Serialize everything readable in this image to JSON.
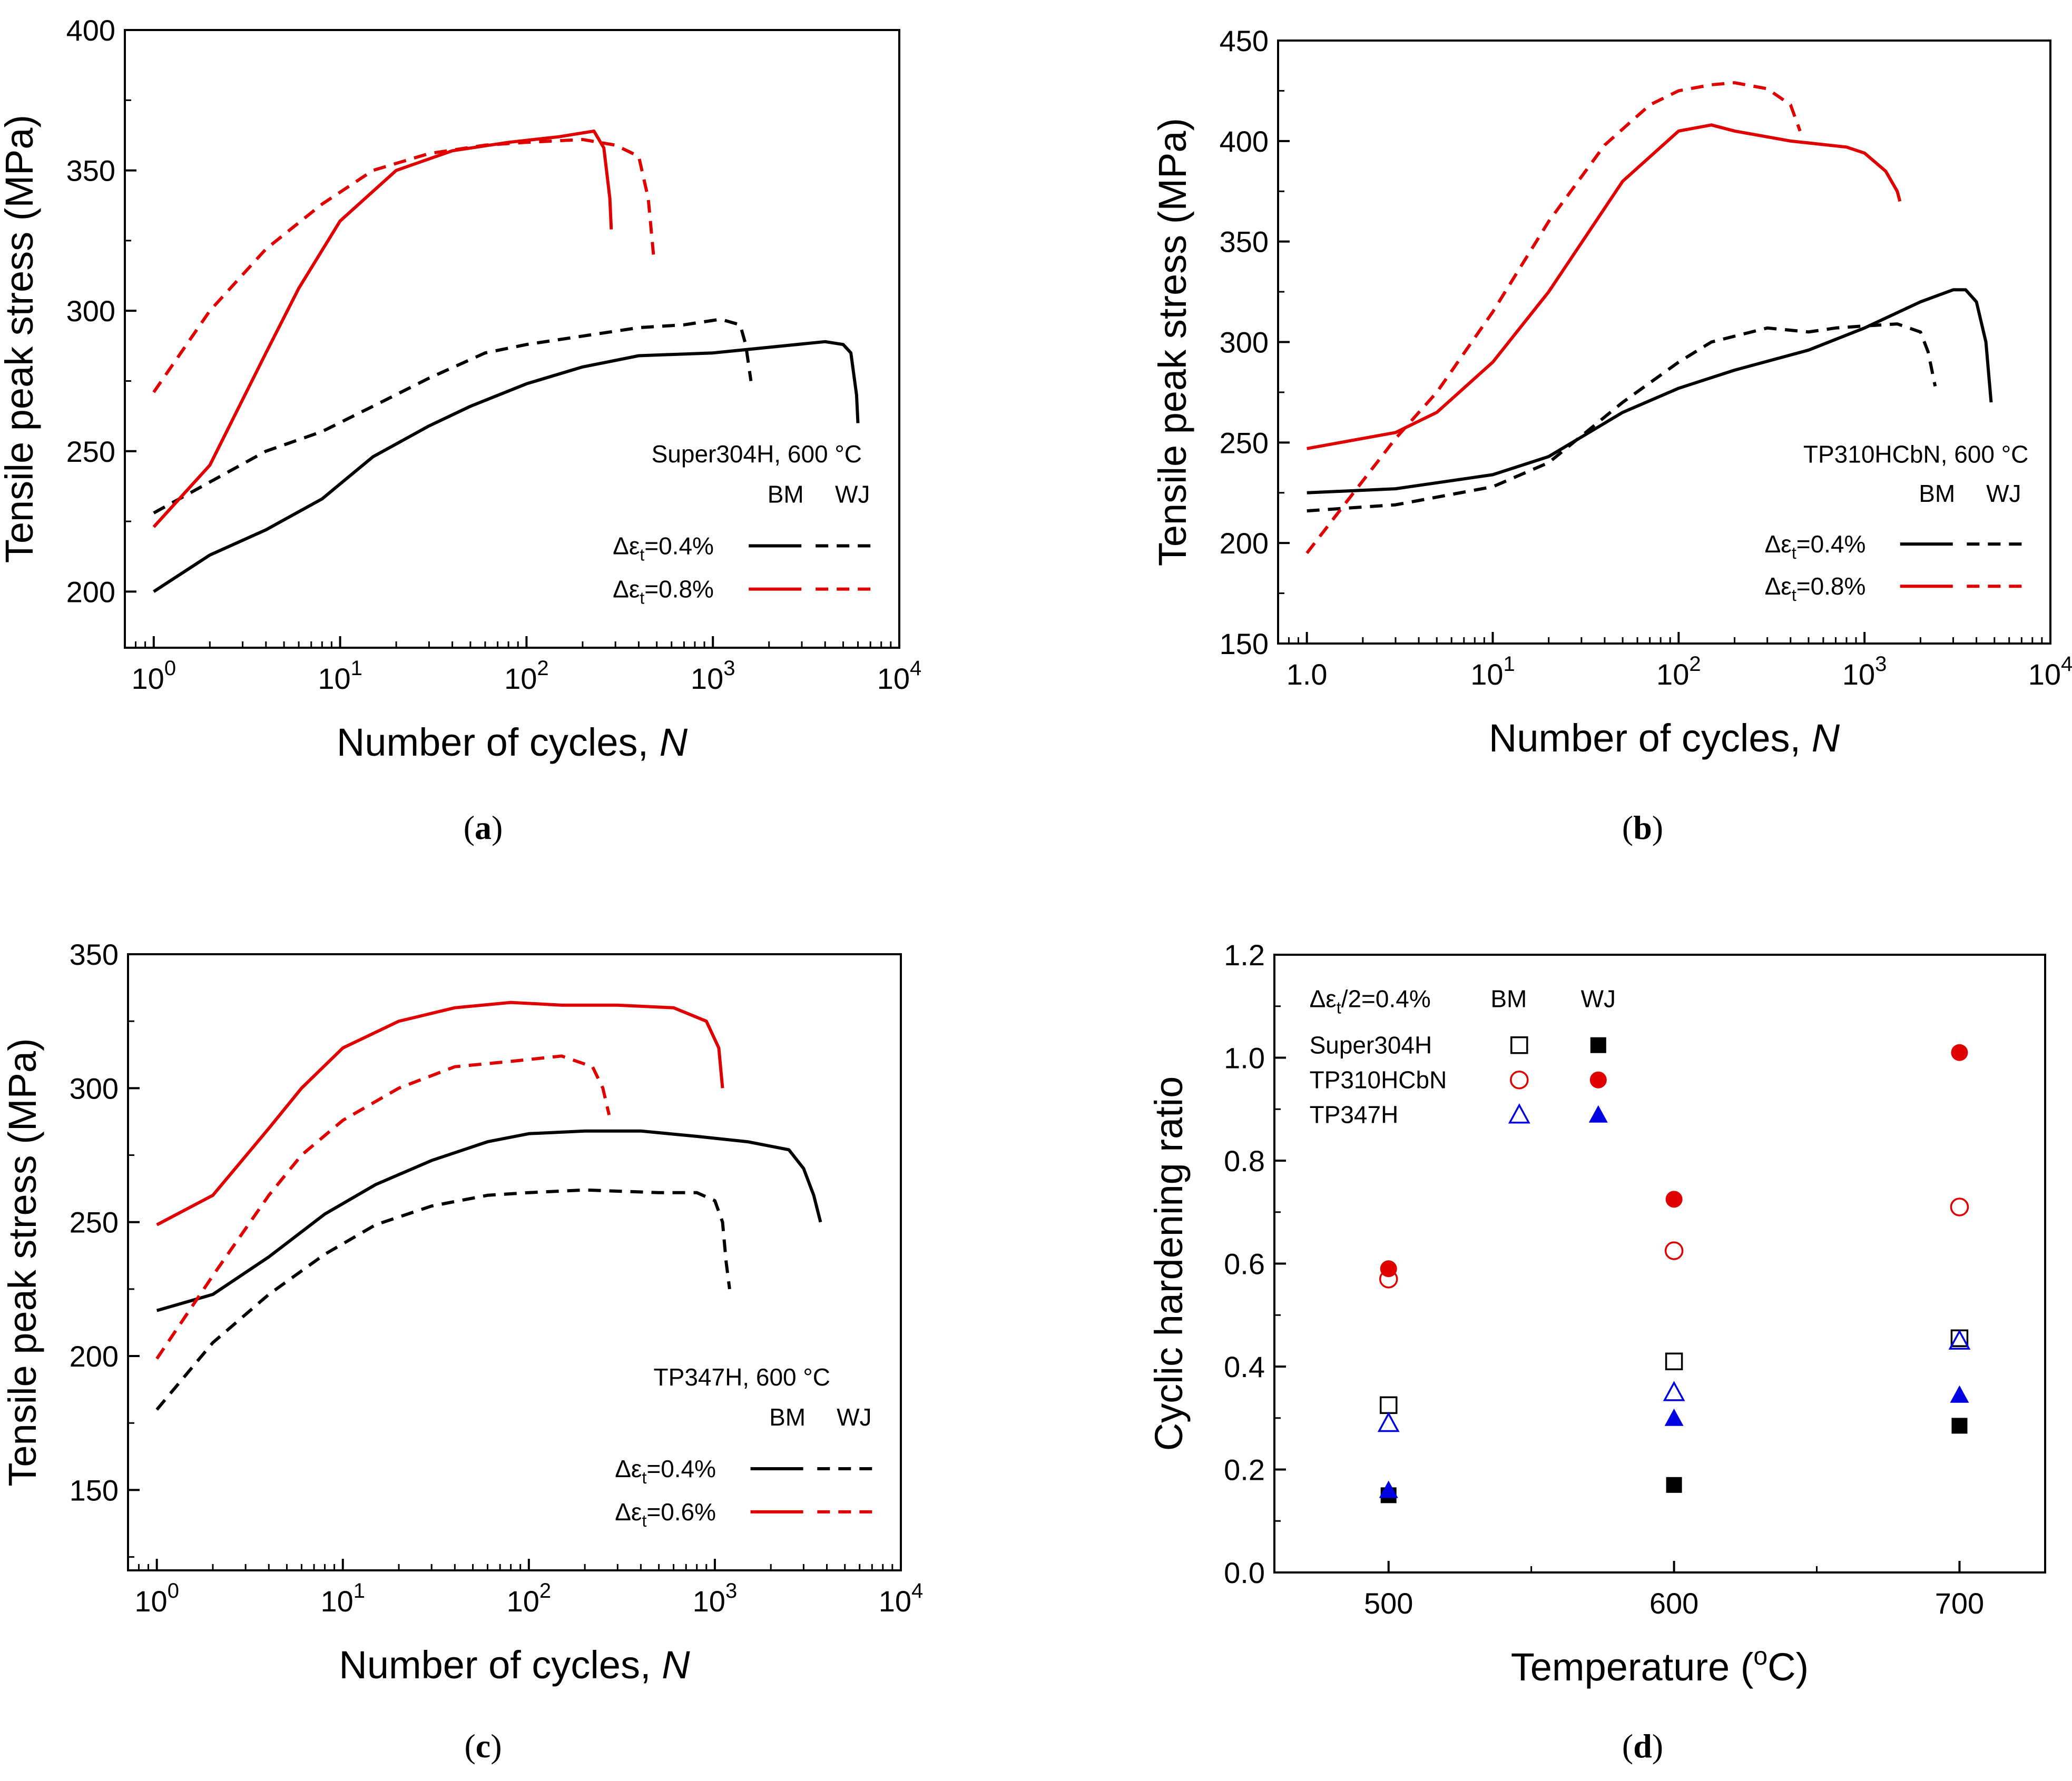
{
  "chart_data": [
    {
      "type": "line",
      "panel": "a",
      "caption": "(a)",
      "xscale": "log",
      "xlim": [
        0.7,
        10000
      ],
      "ylim": [
        180,
        400
      ],
      "yticks": [
        "200",
        "250",
        "300",
        "350",
        "400"
      ],
      "xticks": [
        {
          "base": "10",
          "exp": "0"
        },
        {
          "base": "10",
          "exp": "1"
        },
        {
          "base": "10",
          "exp": "2"
        },
        {
          "base": "10",
          "exp": "3"
        },
        {
          "base": "10",
          "exp": "4"
        }
      ],
      "xlabel": "Number of cycles, ",
      "xlabel_var": "N",
      "ylabel": "Tensile peak stress (MPa)",
      "legend": {
        "title": "Super304H, 600 °C",
        "col_bm": "BM",
        "col_wj": "WJ",
        "rows": [
          {
            "label": "Δε",
            "sub": "t",
            "value": "=0.4%",
            "color": "#000000"
          },
          {
            "label": "Δε",
            "sub": "t",
            "value": "=0.8%",
            "color": "#e00000"
          }
        ]
      },
      "series": [
        {
          "name": "Δεt=0.4% BM",
          "color": "#000000",
          "dash": false,
          "x": [
            1,
            2,
            4,
            8,
            15,
            30,
            50,
            100,
            200,
            400,
            1000,
            2000,
            4000,
            5000,
            5500,
            5900,
            6000
          ],
          "y": [
            200,
            213,
            222,
            233,
            248,
            259,
            266,
            274,
            280,
            284,
            285,
            287,
            289,
            288,
            285,
            270,
            260
          ]
        },
        {
          "name": "Δεt=0.4% WJ",
          "color": "#000000",
          "dash": true,
          "x": [
            1,
            2,
            4,
            8,
            15,
            30,
            60,
            100,
            200,
            400,
            700,
            1100,
            1400,
            1500,
            1600
          ],
          "y": [
            228,
            239,
            250,
            257,
            266,
            276,
            285,
            288,
            291,
            294,
            295,
            297,
            295,
            288,
            275
          ]
        },
        {
          "name": "Δεt=0.8% BM",
          "color": "#e00000",
          "dash": false,
          "x": [
            1,
            2,
            4,
            6,
            10,
            20,
            40,
            80,
            150,
            230,
            260,
            280,
            285
          ],
          "y": [
            223,
            245,
            285,
            308,
            332,
            350,
            357,
            360,
            362,
            364,
            358,
            340,
            329
          ]
        },
        {
          "name": "Δεt=0.8% WJ",
          "color": "#e00000",
          "dash": true,
          "x": [
            1,
            2,
            4,
            8,
            15,
            30,
            60,
            100,
            200,
            300,
            400,
            450,
            480
          ],
          "y": [
            271,
            300,
            322,
            338,
            350,
            356,
            359,
            360,
            361,
            359,
            355,
            340,
            320
          ]
        }
      ]
    },
    {
      "type": "line",
      "panel": "b",
      "caption": "(b)",
      "xscale": "log",
      "xlim": [
        0.7,
        10000
      ],
      "ylim": [
        150,
        450
      ],
      "yticks": [
        "150",
        "200",
        "250",
        "300",
        "350",
        "400",
        "450"
      ],
      "xticks": [
        {
          "base": "1.0",
          "exp": ""
        },
        {
          "base": "10",
          "exp": "1"
        },
        {
          "base": "10",
          "exp": "2"
        },
        {
          "base": "10",
          "exp": "3"
        },
        {
          "base": "10",
          "exp": "4"
        }
      ],
      "xlabel": "Number of cycles, ",
      "xlabel_var": "N",
      "ylabel": "Tensile peak stress (MPa)",
      "legend": {
        "title": "TP310HCbN, 600 °C",
        "col_bm": "BM",
        "col_wj": "WJ",
        "rows": [
          {
            "label": "Δε",
            "sub": "t",
            "value": "=0.4%",
            "color": "#000000"
          },
          {
            "label": "Δε",
            "sub": "t",
            "value": "=0.8%",
            "color": "#e00000"
          }
        ]
      },
      "series": [
        {
          "name": "Δεt=0.4% BM",
          "color": "#000000",
          "dash": false,
          "x": [
            1,
            3,
            10,
            20,
            50,
            100,
            200,
            500,
            1000,
            2000,
            3000,
            3500,
            4000,
            4500,
            4800
          ],
          "y": [
            225,
            227,
            234,
            243,
            265,
            277,
            286,
            296,
            307,
            320,
            326,
            326,
            320,
            300,
            270
          ]
        },
        {
          "name": "Δεt=0.4% WJ",
          "color": "#000000",
          "dash": true,
          "x": [
            1,
            3,
            10,
            20,
            50,
            100,
            150,
            300,
            500,
            700,
            1000,
            1500,
            2000,
            2200,
            2400
          ],
          "y": [
            216,
            219,
            228,
            240,
            270,
            290,
            300,
            307,
            305,
            307,
            308,
            309,
            305,
            295,
            278
          ]
        },
        {
          "name": "Δεt=0.8% BM",
          "color": "#e00000",
          "dash": false,
          "x": [
            1,
            3,
            5,
            10,
            20,
            50,
            100,
            150,
            200,
            400,
            800,
            1000,
            1300,
            1500,
            1550
          ],
          "y": [
            247,
            255,
            265,
            290,
            325,
            380,
            405,
            408,
            405,
            400,
            397,
            394,
            385,
            375,
            370
          ]
        },
        {
          "name": "Δεt=0.8% WJ",
          "color": "#e00000",
          "dash": true,
          "x": [
            1,
            3,
            5,
            10,
            20,
            40,
            70,
            100,
            150,
            200,
            300,
            400,
            450
          ],
          "y": [
            195,
            252,
            275,
            315,
            360,
            398,
            418,
            425,
            428,
            429,
            426,
            418,
            405
          ]
        }
      ]
    },
    {
      "type": "line",
      "panel": "c",
      "caption": "(c)",
      "xscale": "log",
      "xlim": [
        0.7,
        10000
      ],
      "ylim": [
        120,
        350
      ],
      "yticks": [
        "150",
        "200",
        "250",
        "300",
        "350"
      ],
      "xticks": [
        {
          "base": "10",
          "exp": "0"
        },
        {
          "base": "10",
          "exp": "1"
        },
        {
          "base": "10",
          "exp": "2"
        },
        {
          "base": "10",
          "exp": "3"
        },
        {
          "base": "10",
          "exp": "4"
        }
      ],
      "xlabel": "Number of cycles, ",
      "xlabel_var": "N",
      "ylabel": "Tensile peak stress (MPa)",
      "legend": {
        "title": "TP347H, 600 °C",
        "col_bm": "BM",
        "col_wj": "WJ",
        "rows": [
          {
            "label": "Δε",
            "sub": "t",
            "value": "=0.4%",
            "color": "#000000"
          },
          {
            "label": "Δε",
            "sub": "t",
            "value": "=0.6%",
            "color": "#e00000"
          }
        ]
      },
      "series": [
        {
          "name": "Δεt=0.4% BM",
          "color": "#000000",
          "dash": false,
          "x": [
            1,
            2,
            4,
            8,
            15,
            30,
            60,
            100,
            200,
            400,
            800,
            1500,
            2500,
            3000,
            3400,
            3700
          ],
          "y": [
            217,
            223,
            237,
            253,
            264,
            273,
            280,
            283,
            284,
            284,
            282,
            280,
            277,
            270,
            260,
            250
          ]
        },
        {
          "name": "Δεt=0.4% WJ",
          "color": "#000000",
          "dash": true,
          "x": [
            1,
            2,
            4,
            8,
            15,
            30,
            60,
            100,
            200,
            500,
            800,
            1000,
            1100,
            1150,
            1200
          ],
          "y": [
            180,
            205,
            223,
            238,
            249,
            256,
            260,
            261,
            262,
            261,
            261,
            258,
            250,
            235,
            225
          ]
        },
        {
          "name": "Δεt=0.6% BM",
          "color": "#e00000",
          "dash": false,
          "x": [
            1,
            2,
            4,
            6,
            10,
            20,
            40,
            80,
            150,
            300,
            600,
            900,
            1050,
            1100
          ],
          "y": [
            249,
            260,
            285,
            300,
            315,
            325,
            330,
            332,
            331,
            331,
            330,
            325,
            315,
            300
          ]
        },
        {
          "name": "Δεt=0.6% WJ",
          "color": "#e00000",
          "dash": true,
          "x": [
            1,
            2,
            4,
            6,
            10,
            20,
            40,
            80,
            150,
            220,
            250,
            270
          ],
          "y": [
            199,
            230,
            260,
            275,
            288,
            300,
            308,
            310,
            312,
            308,
            300,
            290
          ]
        }
      ]
    },
    {
      "type": "scatter",
      "panel": "d",
      "caption": "(d)",
      "xlim": [
        460,
        730
      ],
      "ylim": [
        0.0,
        1.2
      ],
      "xticks": [
        "500",
        "600",
        "700"
      ],
      "yticks": [
        "0.0",
        "0.2",
        "0.4",
        "0.6",
        "0.8",
        "1.0",
        "1.2"
      ],
      "xlabel": "Temperature (",
      "xlabel_sup": "o",
      "xlabel_end": "C)",
      "ylabel": "Cyclic hardening ratio",
      "legend": {
        "title_pre": "Δε",
        "title_sub": "t",
        "title_post": "/2=0.4%",
        "col_bm": "BM",
        "col_wj": "WJ",
        "rows": [
          {
            "label": "Super304H",
            "marker": "square",
            "color": "#000000"
          },
          {
            "label": "TP310HCbN",
            "marker": "circle",
            "color": "#e00000"
          },
          {
            "label": "TP347H",
            "marker": "triangle",
            "color": "#0000e0"
          }
        ]
      },
      "series": [
        {
          "name": "Super304H BM",
          "marker": "square",
          "filled": false,
          "color": "#000000",
          "x": [
            500,
            600,
            700
          ],
          "y": [
            0.325,
            0.41,
            0.455
          ]
        },
        {
          "name": "Super304H WJ",
          "marker": "square",
          "filled": true,
          "color": "#000000",
          "x": [
            500,
            600,
            700
          ],
          "y": [
            0.15,
            0.17,
            0.285
          ]
        },
        {
          "name": "TP310HCbN BM",
          "marker": "circle",
          "filled": false,
          "color": "#e00000",
          "x": [
            500,
            600,
            700
          ],
          "y": [
            0.57,
            0.625,
            0.71
          ]
        },
        {
          "name": "TP310HCbN WJ",
          "marker": "circle",
          "filled": true,
          "color": "#e00000",
          "x": [
            500,
            600,
            700
          ],
          "y": [
            0.59,
            0.725,
            1.01
          ]
        },
        {
          "name": "TP347H BM",
          "marker": "triangle",
          "filled": false,
          "color": "#0000e0",
          "x": [
            500,
            600,
            700
          ],
          "y": [
            0.29,
            0.35,
            0.45
          ]
        },
        {
          "name": "TP347H WJ",
          "marker": "triangle",
          "filled": true,
          "color": "#0000e0",
          "x": [
            500,
            600,
            700
          ],
          "y": [
            0.16,
            0.3,
            0.345
          ]
        }
      ]
    }
  ]
}
